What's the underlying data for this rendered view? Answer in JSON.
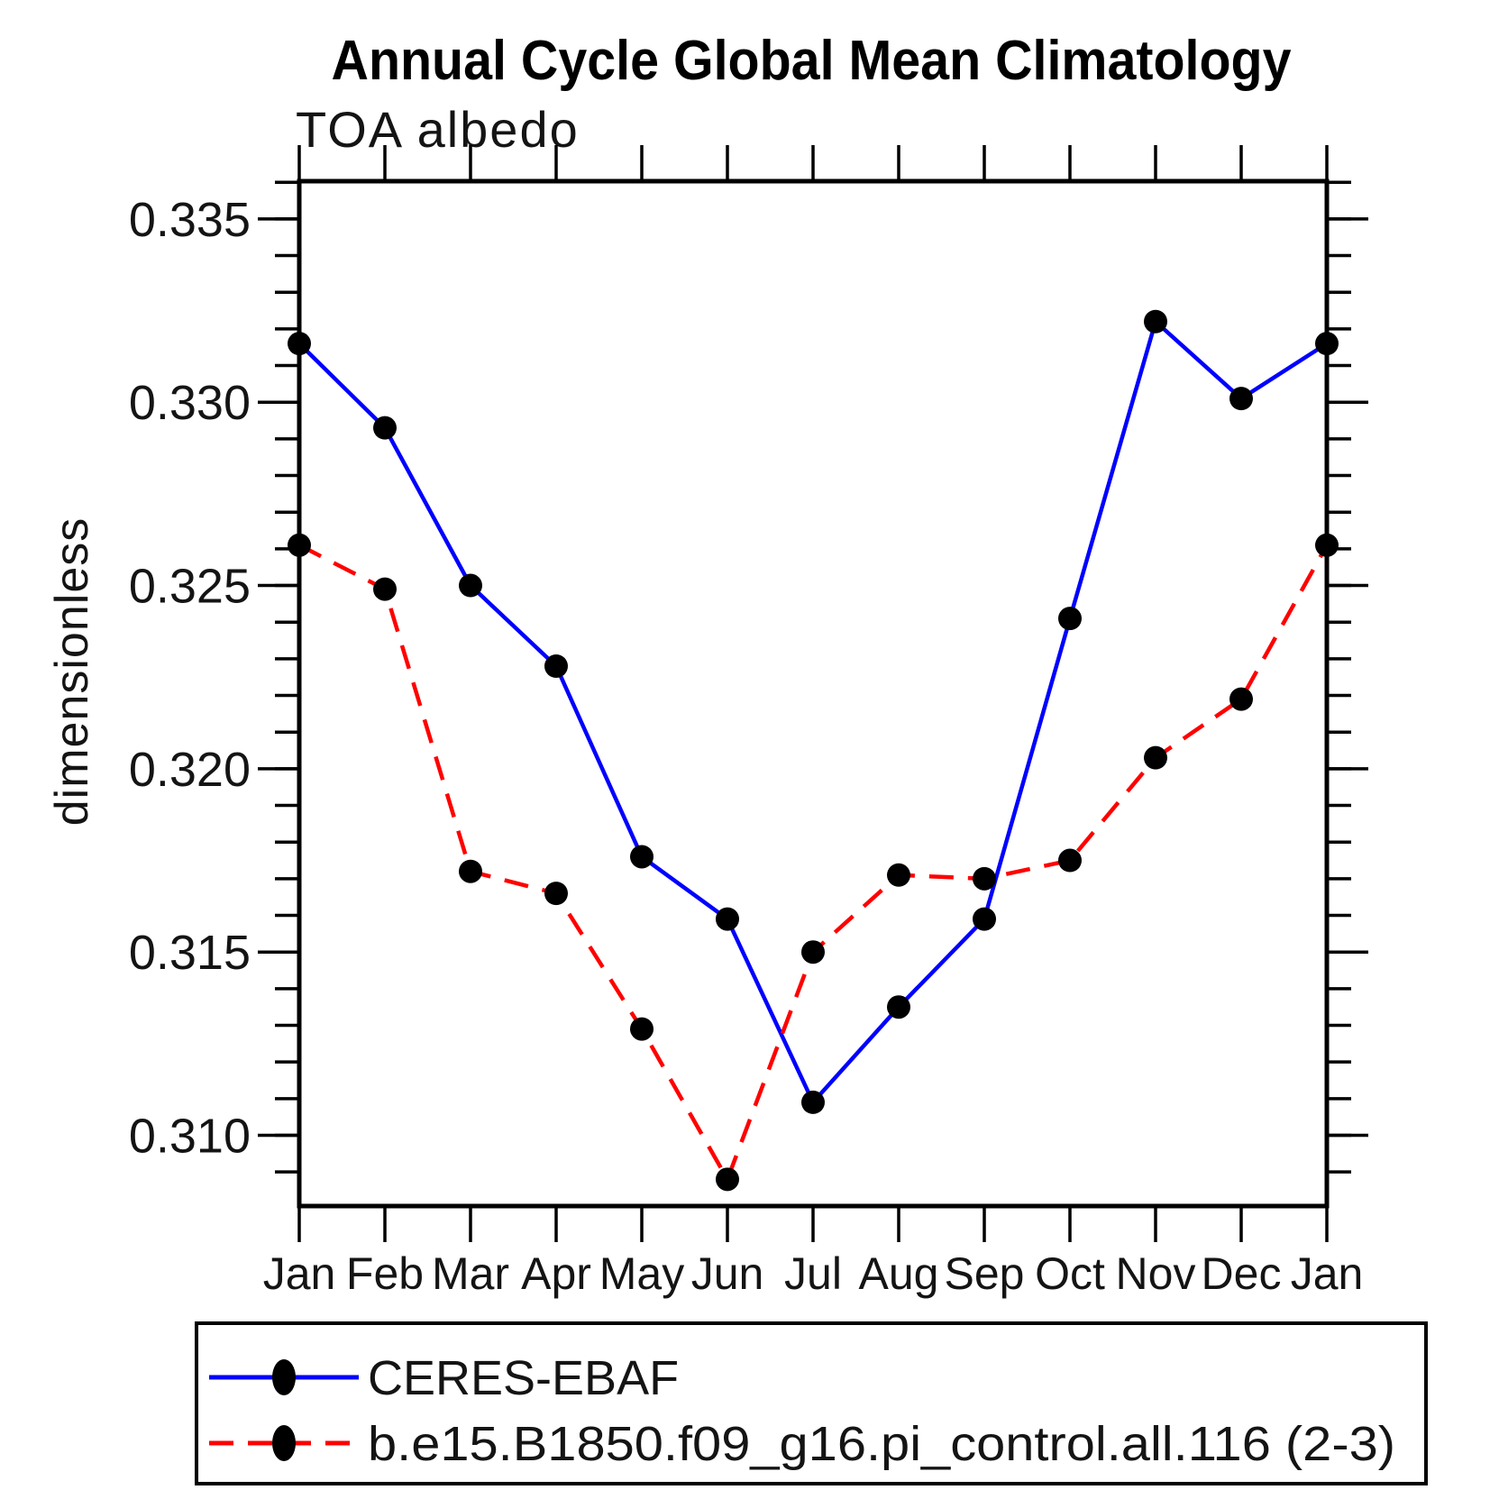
{
  "title": "Annual Cycle Global Mean Climatology",
  "subtitle": "TOA albedo",
  "ylabel": "dimensionless",
  "chart_data": {
    "type": "line",
    "categories": [
      "Jan",
      "Feb",
      "Mar",
      "Apr",
      "May",
      "Jun",
      "Jul",
      "Aug",
      "Sep",
      "Oct",
      "Nov",
      "Dec",
      "Jan"
    ],
    "series": [
      {
        "name": "CERES-EBAF",
        "color": "#0000ff",
        "line_style": "solid",
        "marker": "filled-circle",
        "marker_color": "#000000",
        "values": [
          0.3316,
          0.3293,
          0.325,
          0.3228,
          0.3176,
          0.3159,
          0.3109,
          0.3135,
          0.3159,
          0.3241,
          0.3322,
          0.3301,
          0.3316
        ]
      },
      {
        "name": "b.e15.B1850.f09_g16.pi_control.all.116 (2-3)",
        "color": "#ff0000",
        "line_style": "dashed",
        "marker": "filled-circle",
        "marker_color": "#000000",
        "values": [
          0.3261,
          0.3249,
          0.3172,
          0.3166,
          0.3129,
          0.3088,
          0.315,
          0.3171,
          0.317,
          0.3175,
          0.3203,
          0.3219,
          0.3261
        ]
      }
    ],
    "xlabel": "",
    "ylabel": "dimensionless",
    "ylim": [
      0.30807,
      0.33603
    ],
    "yticks": [
      0.31,
      0.315,
      0.32,
      0.325,
      0.33,
      0.335
    ],
    "ytick_labels": [
      "0.310",
      "0.315",
      "0.320",
      "0.325",
      "0.330",
      "0.335"
    ],
    "y_minor_step": 0.001,
    "grid": "off",
    "legend_position": "bottom-left-box"
  }
}
